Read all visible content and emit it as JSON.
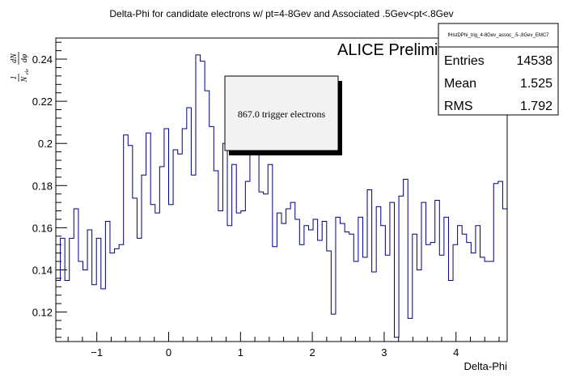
{
  "chart_data": {
    "type": "histogram",
    "title": "Delta-Phi for candidate electrons w/ pt=4-8Gev and Associated .5Gev<pt<.8Gev",
    "xlabel": "Delta-Phi",
    "ylabel": {
      "numerator": "1",
      "denominator": "N",
      "denominator_sub": "ele",
      "frac_num": "dN",
      "frac_den": "dφ"
    },
    "xlim": [
      -1.5708,
      4.7124
    ],
    "ylim": [
      0.106,
      0.25
    ],
    "x_ticks": [
      -1,
      0,
      1,
      2,
      3,
      4
    ],
    "y_ticks": [
      0.12,
      0.14,
      0.16,
      0.18,
      0.2,
      0.22,
      0.24
    ],
    "x_tick_labels": [
      "−1",
      "0",
      "1",
      "2",
      "3",
      "4"
    ],
    "y_tick_labels": [
      "0.12",
      "0.14",
      "0.16",
      "0.18",
      "0.2",
      "0.22",
      "0.24"
    ],
    "grid": false,
    "line_color": "#000080",
    "bins": 100,
    "values": [
      0.135,
      0.155,
      0.135,
      0.155,
      0.169,
      0.144,
      0.14,
      0.159,
      0.133,
      0.155,
      0.131,
      0.163,
      0.148,
      0.15,
      0.152,
      0.204,
      0.199,
      0.174,
      0.155,
      0.185,
      0.205,
      0.171,
      0.167,
      0.189,
      0.207,
      0.171,
      0.197,
      0.195,
      0.207,
      0.217,
      0.185,
      0.242,
      0.239,
      0.225,
      0.208,
      0.187,
      0.168,
      0.2,
      0.161,
      0.19,
      0.167,
      0.168,
      0.182,
      0.207,
      0.198,
      0.177,
      0.176,
      0.19,
      0.151,
      0.167,
      0.162,
      0.169,
      0.172,
      0.164,
      0.152,
      0.161,
      0.159,
      0.164,
      0.154,
      0.163,
      0.149,
      0.119,
      0.165,
      0.162,
      0.158,
      0.157,
      0.144,
      0.165,
      0.146,
      0.178,
      0.139,
      0.17,
      0.161,
      0.147,
      0.172,
      0.108,
      0.175,
      0.183,
      0.117,
      0.157,
      0.14,
      0.172,
      0.152,
      0.153,
      0.173,
      0.147,
      0.165,
      0.135,
      0.152,
      0.161,
      0.157,
      0.153,
      0.148,
      0.161,
      0.146,
      0.144,
      0.144,
      0.181,
      0.182,
      0.169
    ]
  },
  "annotations": {
    "prelim": "ALICE Preliminary",
    "trigger_note": "867.0 trigger electrons"
  },
  "stats_box": {
    "name": "fHistDPhi_trig_4-8Gev_assoc_.5-.8Gev_EMC7",
    "rows": [
      {
        "key": "Entries",
        "value": "14538"
      },
      {
        "key": "Mean",
        "value": "1.525"
      },
      {
        "key": "RMS",
        "value": "1.792"
      }
    ]
  }
}
